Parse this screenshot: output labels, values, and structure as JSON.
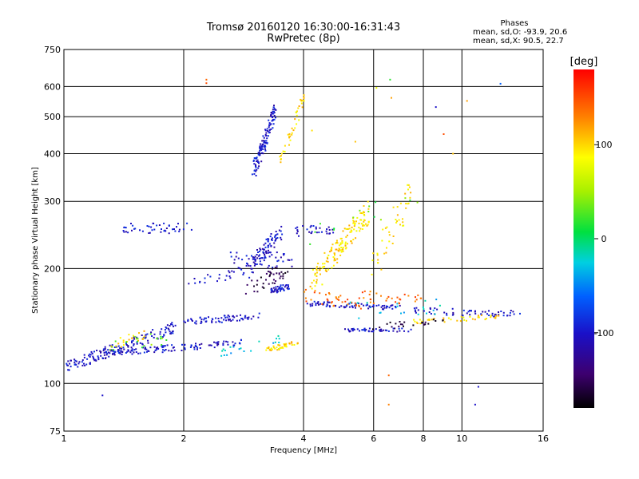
{
  "chart_data": {
    "type": "scatter",
    "title_line1": "Tromsø 20160120 16:30:00-16:31:43",
    "title_line2": "RwPretec (8p)",
    "xlabel": "Frequency [MHz]",
    "ylabel": "Stationary phase Virtual Height [km]",
    "x_scale": "log",
    "y_scale": "log",
    "xlim": [
      1,
      16
    ],
    "ylim": [
      75,
      750
    ],
    "x_ticks": [
      1,
      2,
      4,
      6,
      8,
      10,
      16
    ],
    "x_tick_labels": [
      "1",
      "2",
      "4",
      "6",
      "8",
      "10",
      "16"
    ],
    "y_ticks": [
      75,
      100,
      200,
      300,
      400,
      500,
      600,
      750
    ],
    "y_tick_labels": [
      "75",
      "100",
      "200",
      "300",
      "400",
      "500",
      "600",
      "750"
    ],
    "grid": true,
    "stats": {
      "heading": "Phases",
      "line_o": "mean, sd,O:  -93.9, 20.6",
      "line_x": "mean, sd,X:  90.5, 22.7"
    },
    "colorbar": {
      "label": "[deg]",
      "range": [
        -180,
        180
      ],
      "ticks": [
        100,
        0,
        -100
      ],
      "tick_labels": [
        "100",
        "0",
        "-100"
      ]
    },
    "series": [
      {
        "phase": -100,
        "traces": [
          {
            "f1": 1.0,
            "f2": 1.9,
            "h1": 110,
            "h2": 140,
            "n": 160,
            "spread": 0.035
          },
          {
            "f1": 1.3,
            "f2": 2.8,
            "h1": 120,
            "h2": 128,
            "n": 110,
            "spread": 0.02
          },
          {
            "f1": 1.4,
            "f2": 2.1,
            "h1": 255,
            "h2": 255,
            "n": 45,
            "spread": 0.03
          },
          {
            "f1": 2.0,
            "f2": 3.1,
            "h1": 145,
            "h2": 150,
            "n": 70,
            "spread": 0.02
          },
          {
            "f1": 2.6,
            "f2": 3.8,
            "h1": 210,
            "h2": 210,
            "n": 50,
            "spread": 0.05
          },
          {
            "f1": 3.0,
            "f2": 3.4,
            "h1": 360,
            "h2": 520,
            "n": 120,
            "spread": 0.04
          },
          {
            "f1": 2.9,
            "f2": 3.5,
            "h1": 200,
            "h2": 250,
            "n": 80,
            "spread": 0.05
          },
          {
            "f1": 3.3,
            "f2": 3.7,
            "h1": 175,
            "h2": 180,
            "n": 45,
            "spread": 0.02
          },
          {
            "f1": 4.0,
            "f2": 7.0,
            "h1": 162,
            "h2": 158,
            "n": 80,
            "spread": 0.015
          },
          {
            "f1": 3.8,
            "f2": 4.8,
            "h1": 250,
            "h2": 255,
            "n": 30,
            "spread": 0.03
          },
          {
            "f1": 5.0,
            "f2": 7.5,
            "h1": 138,
            "h2": 138,
            "n": 45,
            "spread": 0.01
          },
          {
            "f1": 7.5,
            "f2": 14.0,
            "h1": 155,
            "h2": 152,
            "n": 60,
            "spread": 0.02
          },
          {
            "f1": 2.0,
            "f2": 3.0,
            "h1": 185,
            "h2": 195,
            "n": 25,
            "spread": 0.03
          }
        ]
      },
      {
        "phase": 100,
        "traces": [
          {
            "f1": 3.5,
            "f2": 4.0,
            "h1": 380,
            "h2": 560,
            "n": 40,
            "spread": 0.04
          },
          {
            "f1": 4.2,
            "f2": 5.8,
            "h1": 185,
            "h2": 280,
            "n": 150,
            "spread": 0.07
          },
          {
            "f1": 3.2,
            "f2": 3.9,
            "h1": 122,
            "h2": 128,
            "n": 40,
            "spread": 0.015
          },
          {
            "f1": 6.0,
            "f2": 7.5,
            "h1": 205,
            "h2": 320,
            "n": 45,
            "spread": 0.08
          },
          {
            "f1": 7.6,
            "f2": 12.5,
            "h1": 145,
            "h2": 150,
            "n": 40,
            "spread": 0.015
          },
          {
            "f1": 1.3,
            "f2": 1.6,
            "h1": 125,
            "h2": 135,
            "n": 20,
            "spread": 0.03
          }
        ]
      },
      {
        "phase": 140,
        "traces": [
          {
            "f1": 4.0,
            "f2": 6.0,
            "h1": 170,
            "h2": 160,
            "n": 40,
            "spread": 0.04
          },
          {
            "f1": 5.5,
            "f2": 8.0,
            "h1": 170,
            "h2": 165,
            "n": 25,
            "spread": 0.03
          }
        ]
      },
      {
        "phase": 30,
        "traces": [
          {
            "f1": 1.3,
            "f2": 1.8,
            "h1": 125,
            "h2": 132,
            "n": 20,
            "spread": 0.04
          },
          {
            "f1": 4.0,
            "f2": 8.0,
            "h1": 250,
            "h2": 300,
            "n": 15,
            "spread": 0.1
          }
        ]
      },
      {
        "phase": -30,
        "traces": [
          {
            "f1": 2.5,
            "f2": 3.5,
            "h1": 120,
            "h2": 130,
            "n": 20,
            "spread": 0.03
          },
          {
            "f1": 5.0,
            "f2": 9.0,
            "h1": 155,
            "h2": 160,
            "n": 20,
            "spread": 0.05
          }
        ]
      },
      {
        "phase": -160,
        "traces": [
          {
            "f1": 2.9,
            "f2": 3.6,
            "h1": 175,
            "h2": 200,
            "n": 40,
            "spread": 0.05
          },
          {
            "f1": 5.5,
            "f2": 9.0,
            "h1": 140,
            "h2": 145,
            "n": 25,
            "spread": 0.02
          }
        ]
      }
    ],
    "isolated_points": [
      {
        "x": 1.25,
        "y": 93,
        "phase": -100
      },
      {
        "x": 2.28,
        "y": 625,
        "phase": 140
      },
      {
        "x": 2.28,
        "y": 612,
        "phase": 150
      },
      {
        "x": 6.6,
        "y": 625,
        "phase": 20
      },
      {
        "x": 6.65,
        "y": 560,
        "phase": 120
      },
      {
        "x": 6.55,
        "y": 88,
        "phase": 130
      },
      {
        "x": 6.55,
        "y": 105,
        "phase": 140
      },
      {
        "x": 8.6,
        "y": 530,
        "phase": -100
      },
      {
        "x": 9.0,
        "y": 450,
        "phase": 150
      },
      {
        "x": 9.5,
        "y": 400,
        "phase": 110
      },
      {
        "x": 10.3,
        "y": 550,
        "phase": 120
      },
      {
        "x": 10.8,
        "y": 88,
        "phase": -100
      },
      {
        "x": 11.0,
        "y": 98,
        "phase": -100
      },
      {
        "x": 12.5,
        "y": 610,
        "phase": -60
      },
      {
        "x": 4.2,
        "y": 460,
        "phase": 100
      },
      {
        "x": 5.4,
        "y": 430,
        "phase": 110
      },
      {
        "x": 6.1,
        "y": 595,
        "phase": 80
      }
    ]
  }
}
